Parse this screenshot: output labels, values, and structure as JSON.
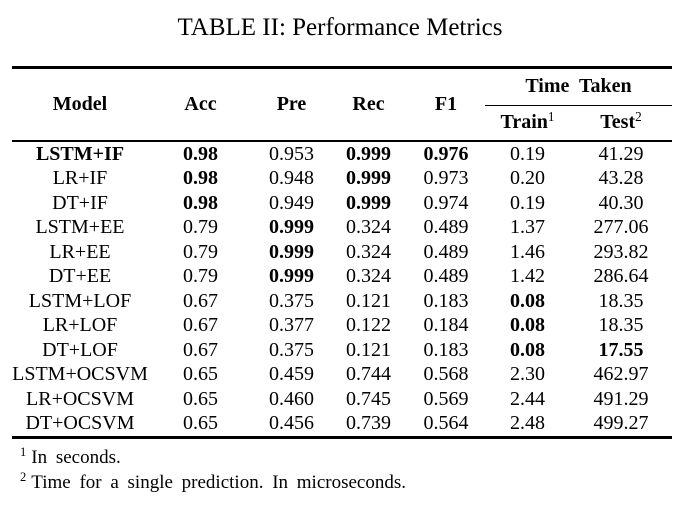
{
  "title": "TABLE II: Performance Metrics",
  "table": {
    "headers": {
      "model": "Model",
      "acc": "Acc",
      "pre": "Pre",
      "rec": "Rec",
      "f1": "F1",
      "time_taken": "Time Taken",
      "train": {
        "label": "Train",
        "sup": "1"
      },
      "test": {
        "label": "Test",
        "sup": "2"
      }
    },
    "rows": [
      {
        "cells": [
          {
            "v": "LSTM+IF",
            "b": true
          },
          {
            "v": "0.98",
            "b": true
          },
          {
            "v": "0.953",
            "b": false
          },
          {
            "v": "0.999",
            "b": true
          },
          {
            "v": "0.976",
            "b": true
          },
          {
            "v": "0.19",
            "b": false
          },
          {
            "v": "41.29",
            "b": false
          }
        ]
      },
      {
        "cells": [
          {
            "v": "LR+IF",
            "b": false
          },
          {
            "v": "0.98",
            "b": true
          },
          {
            "v": "0.948",
            "b": false
          },
          {
            "v": "0.999",
            "b": true
          },
          {
            "v": "0.973",
            "b": false
          },
          {
            "v": "0.20",
            "b": false
          },
          {
            "v": "43.28",
            "b": false
          }
        ]
      },
      {
        "cells": [
          {
            "v": "DT+IF",
            "b": false
          },
          {
            "v": "0.98",
            "b": true
          },
          {
            "v": "0.949",
            "b": false
          },
          {
            "v": "0.999",
            "b": true
          },
          {
            "v": "0.974",
            "b": false
          },
          {
            "v": "0.19",
            "b": false
          },
          {
            "v": "40.30",
            "b": false
          }
        ]
      },
      {
        "cells": [
          {
            "v": "LSTM+EE",
            "b": false
          },
          {
            "v": "0.79",
            "b": false
          },
          {
            "v": "0.999",
            "b": true
          },
          {
            "v": "0.324",
            "b": false
          },
          {
            "v": "0.489",
            "b": false
          },
          {
            "v": "1.37",
            "b": false
          },
          {
            "v": "277.06",
            "b": false
          }
        ]
      },
      {
        "cells": [
          {
            "v": "LR+EE",
            "b": false
          },
          {
            "v": "0.79",
            "b": false
          },
          {
            "v": "0.999",
            "b": true
          },
          {
            "v": "0.324",
            "b": false
          },
          {
            "v": "0.489",
            "b": false
          },
          {
            "v": "1.46",
            "b": false
          },
          {
            "v": "293.82",
            "b": false
          }
        ]
      },
      {
        "cells": [
          {
            "v": "DT+EE",
            "b": false
          },
          {
            "v": "0.79",
            "b": false
          },
          {
            "v": "0.999",
            "b": true
          },
          {
            "v": "0.324",
            "b": false
          },
          {
            "v": "0.489",
            "b": false
          },
          {
            "v": "1.42",
            "b": false
          },
          {
            "v": "286.64",
            "b": false
          }
        ]
      },
      {
        "cells": [
          {
            "v": "LSTM+LOF",
            "b": false
          },
          {
            "v": "0.67",
            "b": false
          },
          {
            "v": "0.375",
            "b": false
          },
          {
            "v": "0.121",
            "b": false
          },
          {
            "v": "0.183",
            "b": false
          },
          {
            "v": "0.08",
            "b": true
          },
          {
            "v": "18.35",
            "b": false
          }
        ]
      },
      {
        "cells": [
          {
            "v": "LR+LOF",
            "b": false
          },
          {
            "v": "0.67",
            "b": false
          },
          {
            "v": "0.377",
            "b": false
          },
          {
            "v": "0.122",
            "b": false
          },
          {
            "v": "0.184",
            "b": false
          },
          {
            "v": "0.08",
            "b": true
          },
          {
            "v": "18.35",
            "b": false
          }
        ]
      },
      {
        "cells": [
          {
            "v": "DT+LOF",
            "b": false
          },
          {
            "v": "0.67",
            "b": false
          },
          {
            "v": "0.375",
            "b": false
          },
          {
            "v": "0.121",
            "b": false
          },
          {
            "v": "0.183",
            "b": false
          },
          {
            "v": "0.08",
            "b": true
          },
          {
            "v": "17.55",
            "b": true
          }
        ]
      },
      {
        "cells": [
          {
            "v": "LSTM+OCSVM",
            "b": false
          },
          {
            "v": "0.65",
            "b": false
          },
          {
            "v": "0.459",
            "b": false
          },
          {
            "v": "0.744",
            "b": false
          },
          {
            "v": "0.568",
            "b": false
          },
          {
            "v": "2.30",
            "b": false
          },
          {
            "v": "462.97",
            "b": false
          }
        ]
      },
      {
        "cells": [
          {
            "v": "LR+OCSVM",
            "b": false
          },
          {
            "v": "0.65",
            "b": false
          },
          {
            "v": "0.460",
            "b": false
          },
          {
            "v": "0.745",
            "b": false
          },
          {
            "v": "0.569",
            "b": false
          },
          {
            "v": "2.44",
            "b": false
          },
          {
            "v": "491.29",
            "b": false
          }
        ]
      },
      {
        "cells": [
          {
            "v": "DT+OCSVM",
            "b": false
          },
          {
            "v": "0.65",
            "b": false
          },
          {
            "v": "0.456",
            "b": false
          },
          {
            "v": "0.739",
            "b": false
          },
          {
            "v": "0.564",
            "b": false
          },
          {
            "v": "2.48",
            "b": false
          },
          {
            "v": "499.27",
            "b": false
          }
        ]
      }
    ]
  },
  "footnotes": [
    {
      "sup": "1",
      "text": "In seconds."
    },
    {
      "sup": "2",
      "text": "Time for a single prediction. In microseconds."
    }
  ],
  "colors": {
    "text": "#000000",
    "background": "#ffffff",
    "rule": "#000000"
  }
}
